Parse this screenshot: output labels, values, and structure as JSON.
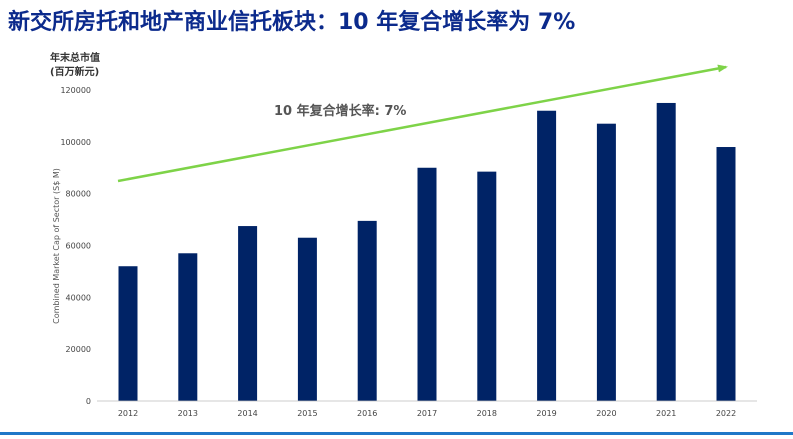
{
  "title": "新交所房托和地产商业信托板块：10 年复合增长率为 7%",
  "y_axis_cn": [
    "年末总市值",
    "(百万新元)"
  ],
  "colors": {
    "bar": "#002366",
    "trend": "#7ed348",
    "title": "#0b2a8c",
    "bottom_line": "#1f78c8"
  },
  "chart_data": {
    "type": "bar",
    "categories": [
      "2012",
      "2013",
      "2014",
      "2015",
      "2016",
      "2017",
      "2018",
      "2019",
      "2020",
      "2021",
      "2022"
    ],
    "values": [
      52000,
      57000,
      67500,
      63000,
      69500,
      90000,
      88500,
      112000,
      107000,
      115000,
      98000
    ],
    "ylabel": "Combined Market Cap of Sector (S$ M)",
    "ylim": [
      0,
      120000
    ],
    "yticks": [
      0,
      20000,
      40000,
      60000,
      80000,
      100000,
      120000
    ],
    "annotation": "10 年复合增长率: 7%",
    "grid": false
  }
}
